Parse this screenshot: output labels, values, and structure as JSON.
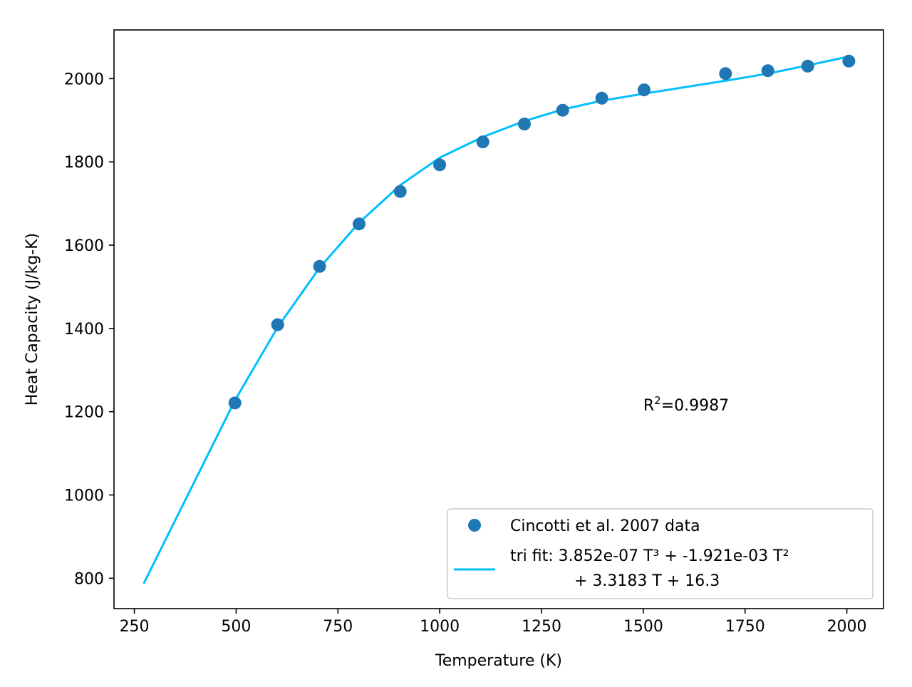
{
  "chart_data": {
    "type": "scatter",
    "xlabel": "Temperature (K)",
    "ylabel": "Heat Capacity (J/kg-K)",
    "xlim": [
      200,
      2090
    ],
    "ylim": [
      727,
      2117
    ],
    "xticks": [
      250,
      500,
      750,
      1000,
      1250,
      1500,
      1750,
      2000
    ],
    "yticks": [
      800,
      1000,
      1200,
      1400,
      1600,
      1800,
      2000
    ],
    "grid": false,
    "legend_position": "lower-right",
    "colors": {
      "data": "#1f77b4",
      "fit": "#00bfff"
    },
    "series": [
      {
        "name": "Cincotti et al. 2007 data",
        "kind": "scatter",
        "x": [
          497,
          602,
          705,
          802,
          903,
          1000,
          1106,
          1208,
          1302,
          1398,
          1502,
          1702,
          1806,
          1904,
          2005
        ],
        "y": [
          1221,
          1409,
          1549,
          1651,
          1729,
          1793,
          1848,
          1891,
          1924,
          1953,
          1973,
          2012,
          2019,
          2030,
          2042
        ]
      },
      {
        "name": "tri fit: 3.852e-07 T³ + -1.921e-03 T²",
        "name_line2": "+ 3.3183 T +  16.3",
        "kind": "line",
        "x": [
          273,
          497,
          602,
          705,
          802,
          903,
          1000,
          1106,
          1208,
          1302,
          1398,
          1502,
          1702,
          1806,
          1904,
          2005
        ],
        "y": [
          787,
          1227,
          1403,
          1546,
          1654,
          1744,
          1810,
          1860,
          1898,
          1926,
          1947,
          1964,
          1995,
          2012,
          2032,
          2053
        ]
      }
    ],
    "annotation": {
      "text_main": "R",
      "text_sup": "2",
      "text_rest": "=0.9987",
      "x": 1500,
      "y": 1203
    }
  }
}
